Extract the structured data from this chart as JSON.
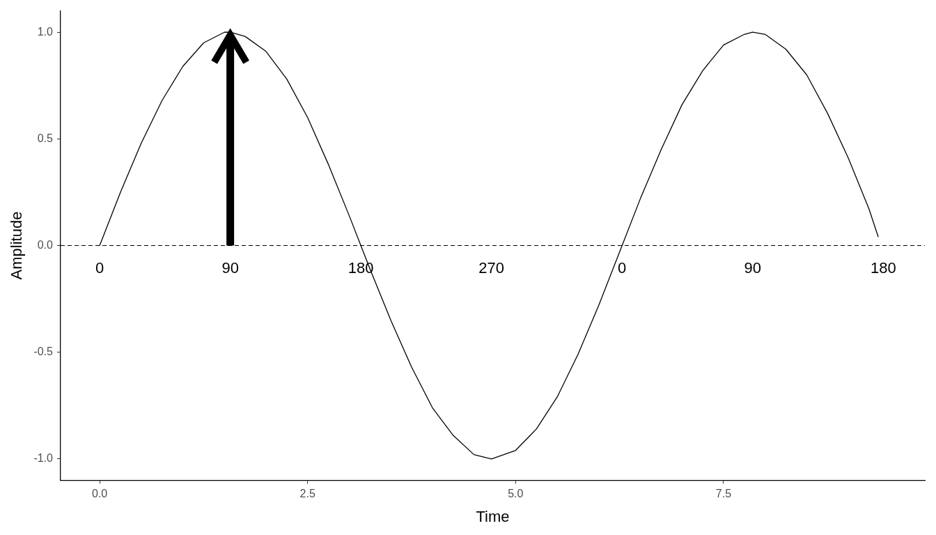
{
  "chart_data": {
    "type": "line",
    "xlabel": "Time",
    "ylabel": "Amplitude",
    "x": [
      0,
      0.25,
      0.5,
      0.75,
      1.0,
      1.25,
      1.5,
      1.57,
      1.75,
      2.0,
      2.25,
      2.5,
      2.75,
      3.0,
      3.25,
      3.5,
      3.75,
      4.0,
      4.25,
      4.5,
      4.71,
      5.0,
      5.25,
      5.5,
      5.75,
      6.0,
      6.25,
      6.5,
      6.75,
      7.0,
      7.25,
      7.5,
      7.75,
      7.85,
      8.0,
      8.25,
      8.5,
      8.75,
      9.0,
      9.25,
      9.36
    ],
    "series": [
      {
        "color": "#000000",
        "values": [
          0,
          0.25,
          0.48,
          0.68,
          0.84,
          0.95,
          1.0,
          1.0,
          0.98,
          0.91,
          0.78,
          0.6,
          0.38,
          0.14,
          -0.11,
          -0.35,
          -0.57,
          -0.76,
          -0.89,
          -0.98,
          -1.0,
          -0.96,
          -0.86,
          -0.71,
          -0.51,
          -0.28,
          -0.03,
          0.22,
          0.45,
          0.66,
          0.82,
          0.94,
          0.99,
          1.0,
          0.99,
          0.92,
          0.8,
          0.62,
          0.41,
          0.17,
          0.04
        ]
      }
    ],
    "xlim": [
      -0.47,
      9.92
    ],
    "ylim": [
      -1.1,
      1.1
    ],
    "xticks": [
      {
        "value": 0,
        "label": "0.0"
      },
      {
        "value": 2.5,
        "label": "2.5"
      },
      {
        "value": 5,
        "label": "5.0"
      },
      {
        "value": 7.5,
        "label": "7.5"
      }
    ],
    "yticks": [
      {
        "value": -1,
        "label": "-1.0"
      },
      {
        "value": -0.5,
        "label": "-0.5"
      },
      {
        "value": 0,
        "label": "0.0"
      },
      {
        "value": 0.5,
        "label": "0.5"
      },
      {
        "value": 1,
        "label": "1.0"
      }
    ],
    "ref_lines": [
      {
        "axis": "y",
        "value": 0,
        "color": "#000000",
        "line_style": "dashed"
      }
    ],
    "annotations": [
      {
        "text": "0",
        "x": 0,
        "y": 0
      },
      {
        "text": "90",
        "x": 1.57,
        "y": 0
      },
      {
        "text": "180",
        "x": 3.14,
        "y": 0
      },
      {
        "text": "270",
        "x": 4.71,
        "y": 0
      },
      {
        "text": "0",
        "x": 6.28,
        "y": 0
      },
      {
        "text": "90",
        "x": 7.85,
        "y": 0
      },
      {
        "text": "180",
        "x": 9.42,
        "y": 0
      }
    ],
    "grid": false,
    "legend": false,
    "marker": "none",
    "line_style": "solid"
  }
}
